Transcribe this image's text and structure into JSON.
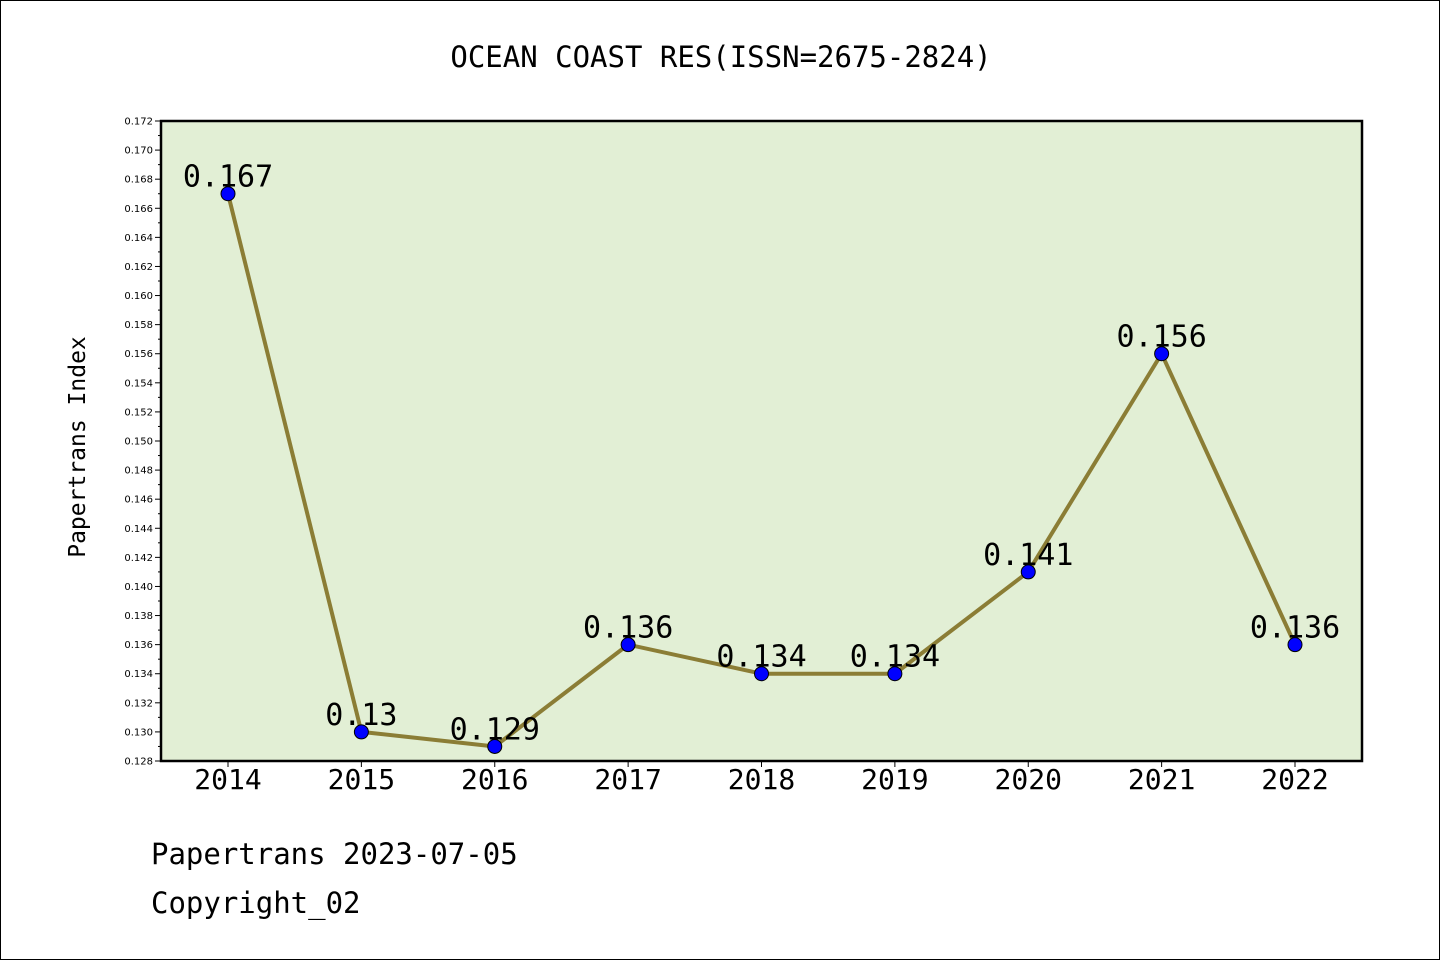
{
  "chart_data": {
    "type": "line",
    "title": "OCEAN COAST RES(ISSN=2675-2824)",
    "xlabel": "",
    "ylabel": "Papertrans Index",
    "categories": [
      "2014",
      "2015",
      "2016",
      "2017",
      "2018",
      "2019",
      "2020",
      "2021",
      "2022"
    ],
    "series": [
      {
        "values": [
          0.167,
          0.13,
          0.129,
          0.136,
          0.134,
          0.134,
          0.141,
          0.156,
          0.136
        ],
        "labels": [
          "0.167",
          "0.13",
          "0.129",
          "0.136",
          "0.134",
          "0.134",
          "0.141",
          "0.156",
          "0.136"
        ]
      }
    ],
    "ylim": [
      0.128,
      0.172
    ],
    "yticks": [
      "0.128",
      "0.130",
      "0.132",
      "0.134",
      "0.136",
      "0.138",
      "0.140",
      "0.142",
      "0.144",
      "0.146",
      "0.148",
      "0.150",
      "0.152",
      "0.154",
      "0.156",
      "0.158",
      "0.160",
      "0.162",
      "0.164",
      "0.166",
      "0.168",
      "0.170",
      "0.172"
    ],
    "grid": false,
    "colors": {
      "plot_background": "#e2efd5",
      "line": "#8b7d35",
      "marker": "#0000ff",
      "axis": "#000000"
    }
  },
  "footer": {
    "date_line": "Papertrans 2023-07-05",
    "copyright_line": "Copyright_02"
  }
}
